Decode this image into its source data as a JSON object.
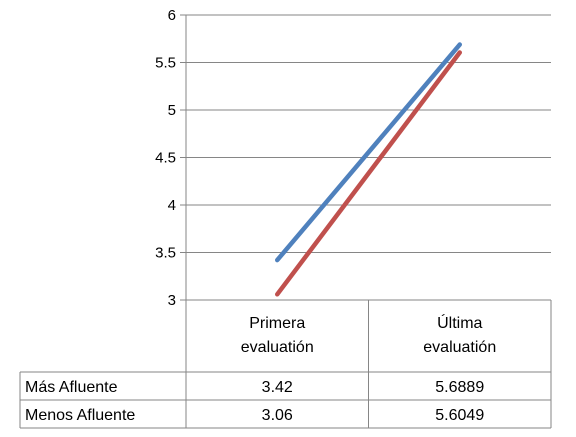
{
  "chart_data": {
    "type": "line",
    "categories": [
      [
        "Primera",
        "evaluatión"
      ],
      [
        "Última",
        "evaluatión"
      ]
    ],
    "ylim": [
      3,
      6
    ],
    "yticks": [
      "3",
      "3.5",
      "4",
      "4.5",
      "5",
      "5.5",
      "6"
    ],
    "grid": true,
    "series": [
      {
        "name": "Más Afluente",
        "values": [
          3.42,
          5.6889
        ],
        "display": [
          "3.42",
          "5.6889"
        ],
        "color": "#4F81BD"
      },
      {
        "name": "Menos Afluente",
        "values": [
          3.06,
          5.6049
        ],
        "display": [
          "3.06",
          "5.6049"
        ],
        "color": "#C0504D"
      }
    ]
  }
}
